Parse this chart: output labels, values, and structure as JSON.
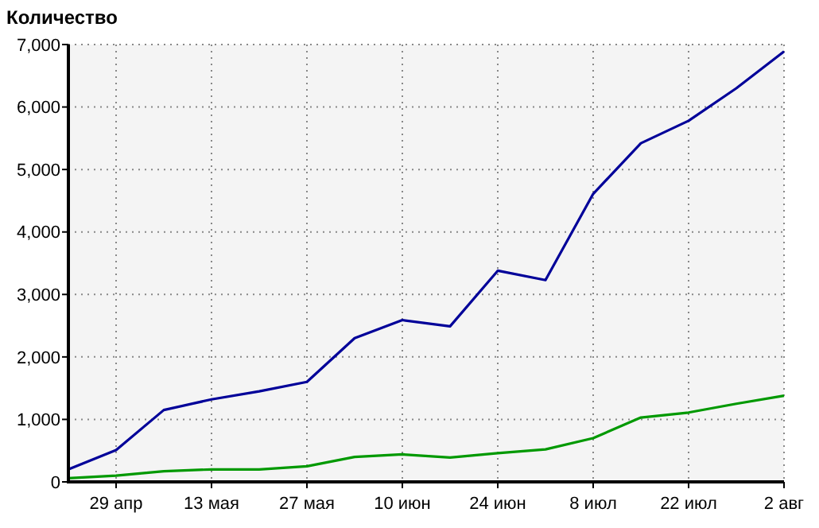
{
  "chart_data": {
    "type": "line",
    "title": "Количество",
    "categories": [
      null,
      "29 апр",
      null,
      "13 мая",
      null,
      "27 мая",
      null,
      "10 июн",
      null,
      "24 июн",
      null,
      "8 июл",
      null,
      "22 июл",
      null,
      "2 авг"
    ],
    "series": [
      {
        "color": "#000099",
        "values": [
          200,
          510,
          1150,
          1320,
          1450,
          1600,
          2300,
          2590,
          2490,
          3380,
          3230,
          4610,
          5420,
          5780,
          6300,
          6890
        ]
      },
      {
        "color": "#009900",
        "values": [
          60,
          100,
          170,
          200,
          200,
          250,
          400,
          440,
          390,
          460,
          520,
          700,
          1030,
          1110,
          1250,
          1380
        ]
      }
    ],
    "ylim": [
      0,
      7000
    ],
    "yticks": [
      {
        "value": 0,
        "label": "0"
      },
      {
        "value": 1000,
        "label": "1,000"
      },
      {
        "value": 2000,
        "label": "2,000"
      },
      {
        "value": 3000,
        "label": "3,000"
      },
      {
        "value": 4000,
        "label": "4,000"
      },
      {
        "value": 5000,
        "label": "5,000"
      },
      {
        "value": 6000,
        "label": "6,000"
      },
      {
        "value": 7000,
        "label": "7,000"
      }
    ],
    "grid": true,
    "line_style": "solid"
  }
}
